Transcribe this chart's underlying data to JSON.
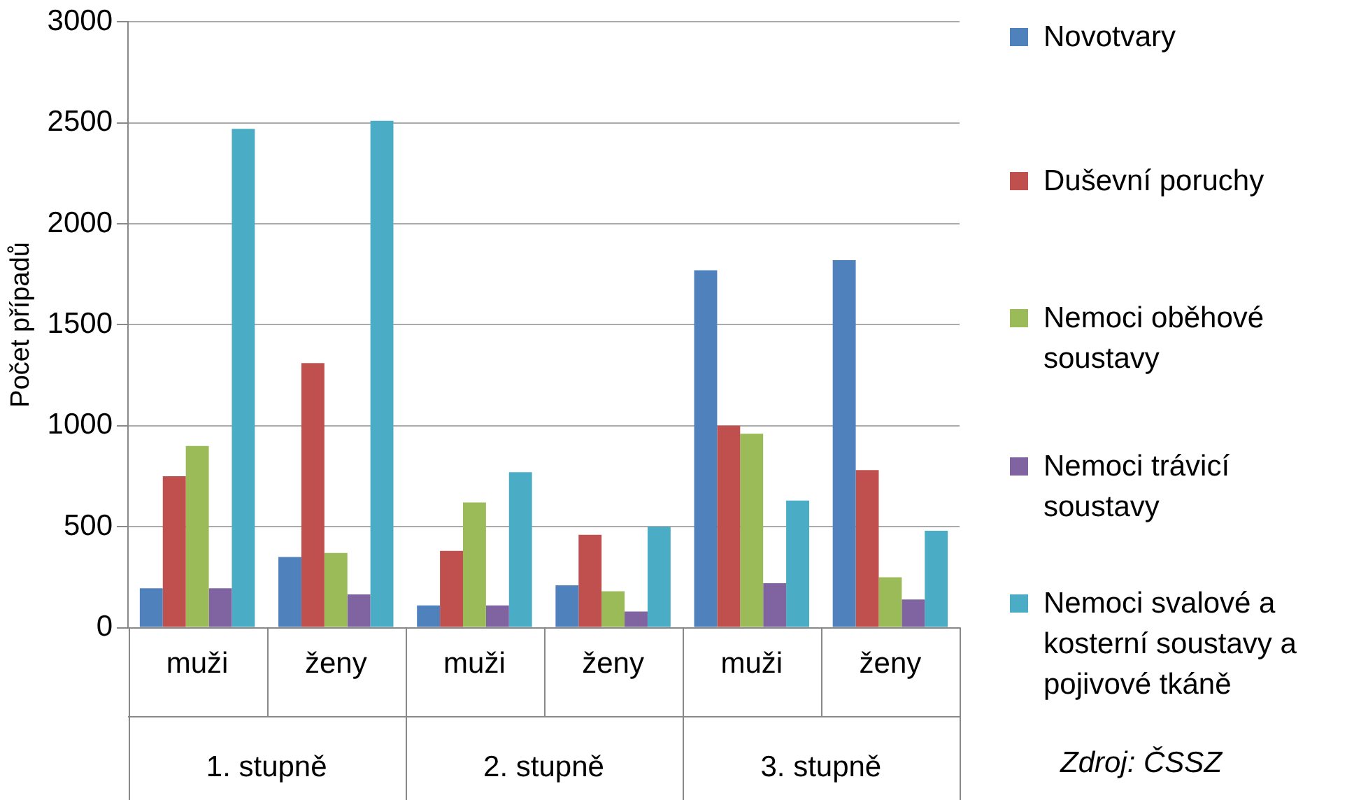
{
  "chart_data": {
    "type": "bar",
    "ylabel": "Počet případů",
    "categories": [
      "muži",
      "ženy",
      "muži",
      "ženy",
      "muži",
      "ženy"
    ],
    "series": [
      {
        "name": "Novotvary",
        "color": "#4f81bd",
        "values": [
          195,
          350,
          110,
          210,
          1770,
          1820
        ]
      },
      {
        "name": "Duševní poruchy",
        "color": "#c0504d",
        "values": [
          750,
          1310,
          380,
          460,
          1000,
          780
        ]
      },
      {
        "name": "Nemoci oběhové soustavy",
        "color": "#9bbb59",
        "values": [
          900,
          370,
          620,
          180,
          960,
          250
        ]
      },
      {
        "name": "Nemoci trávicí soustavy",
        "color": "#8064a2",
        "values": [
          195,
          165,
          110,
          80,
          220,
          140
        ]
      },
      {
        "name": "Nemoci svalové a kosterní soustavy a pojivové tkáně",
        "color": "#4bacc6",
        "values": [
          2470,
          2510,
          770,
          500,
          630,
          480
        ]
      }
    ],
    "ylim": [
      0,
      3000
    ],
    "yticks": [
      0,
      500,
      1000,
      1500,
      2000,
      2500,
      3000
    ],
    "grid": "y",
    "legend": "right",
    "annotations": [
      "1. stupně",
      "2. stupně",
      "3. stupně",
      "Zdroj: ČSSZ"
    ]
  }
}
